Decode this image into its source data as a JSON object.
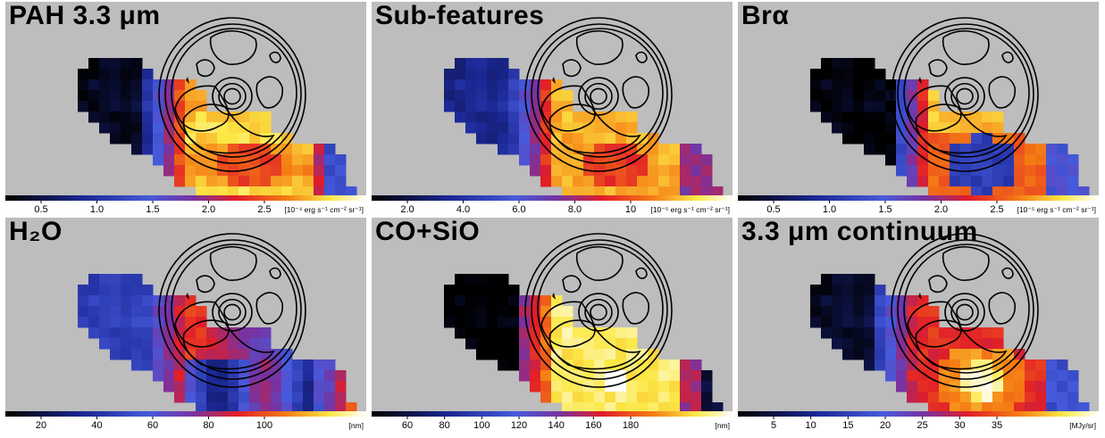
{
  "panels": [
    {
      "title": "PAH 3.3 μm",
      "variant": "pah",
      "ticks": [
        "0.5",
        "1.0",
        "1.5",
        "2.0",
        "2.5"
      ],
      "unit": "[10⁻⁴ erg s⁻¹ cm⁻² sr⁻¹]"
    },
    {
      "title": "Sub-features",
      "variant": "sub",
      "ticks": [
        "2.0",
        "4.0",
        "6.0",
        "8.0",
        "10"
      ],
      "unit": "[10⁻⁵ erg s⁻¹ cm⁻² sr⁻¹]"
    },
    {
      "title": "Brα",
      "variant": "bra",
      "ticks": [
        "0.5",
        "1.0",
        "1.5",
        "2.0",
        "2.5"
      ],
      "unit": "[10⁻⁵ erg s⁻¹ cm⁻² sr⁻¹]"
    },
    {
      "title": "H₂O",
      "variant": "h2o",
      "ticks": [
        "20",
        "40",
        "60",
        "80",
        "100"
      ],
      "unit": "[nm]"
    },
    {
      "title": "CO+SiO",
      "variant": "co",
      "ticks": [
        "60",
        "80",
        "100",
        "120",
        "140",
        "160",
        "180"
      ],
      "unit": "[nm]"
    },
    {
      "title": "3.3 μm continuum",
      "variant": "cont",
      "ticks": [
        "5",
        "10",
        "15",
        "20",
        "25",
        "30",
        "35"
      ],
      "unit": "[MJy/sr]"
    }
  ]
}
